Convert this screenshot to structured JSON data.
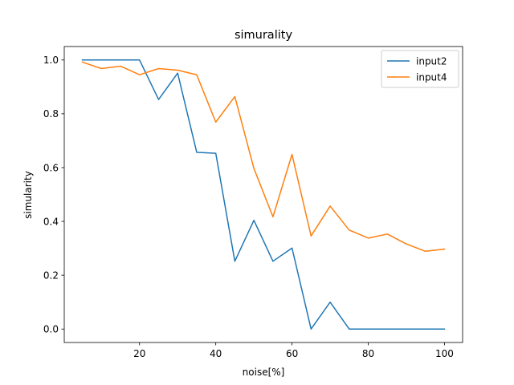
{
  "chart_data": {
    "type": "line",
    "title": "simurality",
    "xlabel": "noise[%]",
    "ylabel": "simularity",
    "xlim": [
      0.25,
      104.75
    ],
    "ylim": [
      -0.05,
      1.05
    ],
    "x_ticks": [
      20,
      40,
      60,
      80,
      100
    ],
    "x_tick_labels": [
      "20",
      "40",
      "60",
      "80",
      "100"
    ],
    "y_ticks": [
      0.0,
      0.2,
      0.4,
      0.6,
      0.8,
      1.0
    ],
    "y_tick_labels": [
      "0.0",
      "0.2",
      "0.4",
      "0.6",
      "0.8",
      "1.0"
    ],
    "grid": false,
    "legend_position": "top-right",
    "x": [
      5,
      10,
      15,
      20,
      25,
      30,
      35,
      40,
      45,
      50,
      55,
      60,
      65,
      70,
      75,
      80,
      85,
      90,
      95,
      100
    ],
    "series": [
      {
        "name": "input2",
        "color": "#1f77b4",
        "values": [
          1.0,
          1.0,
          1.0,
          1.0,
          0.853,
          0.951,
          0.657,
          0.653,
          0.252,
          0.404,
          0.252,
          0.301,
          0.0,
          0.1,
          0.0,
          0.0,
          0.0,
          0.0,
          0.0,
          0.0
        ]
      },
      {
        "name": "input4",
        "color": "#ff7f0e",
        "values": [
          0.992,
          0.968,
          0.977,
          0.945,
          0.968,
          0.962,
          0.945,
          0.769,
          0.864,
          0.597,
          0.417,
          0.649,
          0.346,
          0.457,
          0.368,
          0.338,
          0.353,
          0.316,
          0.289,
          0.297
        ]
      }
    ]
  }
}
